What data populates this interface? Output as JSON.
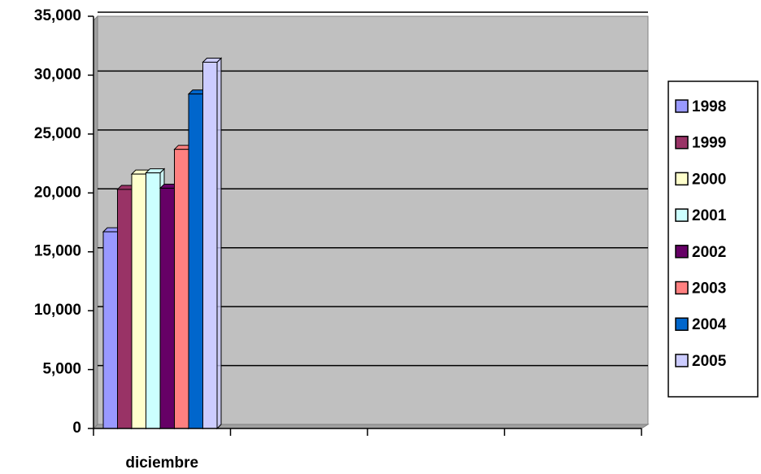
{
  "chart_data": {
    "type": "bar",
    "categories": [
      "diciembre",
      null,
      null,
      null
    ],
    "series": [
      {
        "name": "1998",
        "color": "#9999ff",
        "values": [
          16700,
          null,
          null,
          null
        ]
      },
      {
        "name": "1999",
        "color": "#993366",
        "values": [
          20300,
          null,
          null,
          null
        ]
      },
      {
        "name": "2000",
        "color": "#ffffcc",
        "values": [
          21600,
          null,
          null,
          null
        ]
      },
      {
        "name": "2001",
        "color": "#ccffff",
        "values": [
          21700,
          null,
          null,
          null
        ]
      },
      {
        "name": "2002",
        "color": "#660066",
        "values": [
          20400,
          null,
          null,
          null
        ]
      },
      {
        "name": "2003",
        "color": "#ff8080",
        "values": [
          23700,
          null,
          null,
          null
        ]
      },
      {
        "name": "2004",
        "color": "#0066cc",
        "values": [
          28400,
          null,
          null,
          null
        ]
      },
      {
        "name": "2005",
        "color": "#ccccff",
        "values": [
          31100,
          null,
          null,
          null
        ]
      }
    ],
    "ylim": [
      0,
      35000
    ],
    "yticks": [
      0,
      {
        "value": 5000,
        "label": "5,000"
      },
      {
        "value": 10000,
        "label": "10,000"
      },
      {
        "value": 15000,
        "label": "15,000"
      },
      {
        "value": 20000,
        "label": "20,000"
      },
      {
        "value": 25000,
        "label": "25,000"
      },
      {
        "value": 30000,
        "label": "30,000"
      },
      {
        "value": 35000,
        "label": "35,000"
      }
    ],
    "grid": true,
    "legend": "right"
  }
}
